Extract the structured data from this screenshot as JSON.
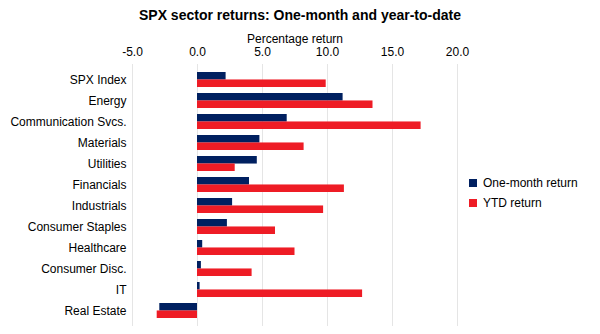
{
  "chart_data": {
    "type": "bar",
    "orientation": "horizontal",
    "title": "SPX sector returns: One-month and year-to-date",
    "x_label": "Percentage return",
    "categories": [
      "SPX Index",
      "Energy",
      "Communication Svcs.",
      "Materials",
      "Utilities",
      "Financials",
      "Industrials",
      "Consumer Staples",
      "Healthcare",
      "Consumer Disc.",
      "IT",
      "Real Estate"
    ],
    "series": [
      {
        "name": "One-month return",
        "color": "#002060",
        "values": [
          2.2,
          11.2,
          6.9,
          4.8,
          4.6,
          4.0,
          2.7,
          2.3,
          0.4,
          0.3,
          0.2,
          -2.9
        ]
      },
      {
        "name": "YTD return",
        "color": "#ee1c25",
        "values": [
          9.9,
          13.5,
          17.2,
          8.2,
          2.9,
          11.3,
          9.7,
          6.0,
          7.5,
          4.2,
          12.7,
          -3.1
        ]
      }
    ],
    "xlim": [
      -5,
      20
    ],
    "xticks": [
      {
        "value": -5,
        "label": "-5.0"
      },
      {
        "value": 0,
        "label": "0.0"
      },
      {
        "value": 5,
        "label": "5.0"
      },
      {
        "value": 10,
        "label": "10.0"
      },
      {
        "value": 15,
        "label": "15.0"
      },
      {
        "value": 20,
        "label": "20.0"
      }
    ],
    "grid": true,
    "legend": "right"
  }
}
